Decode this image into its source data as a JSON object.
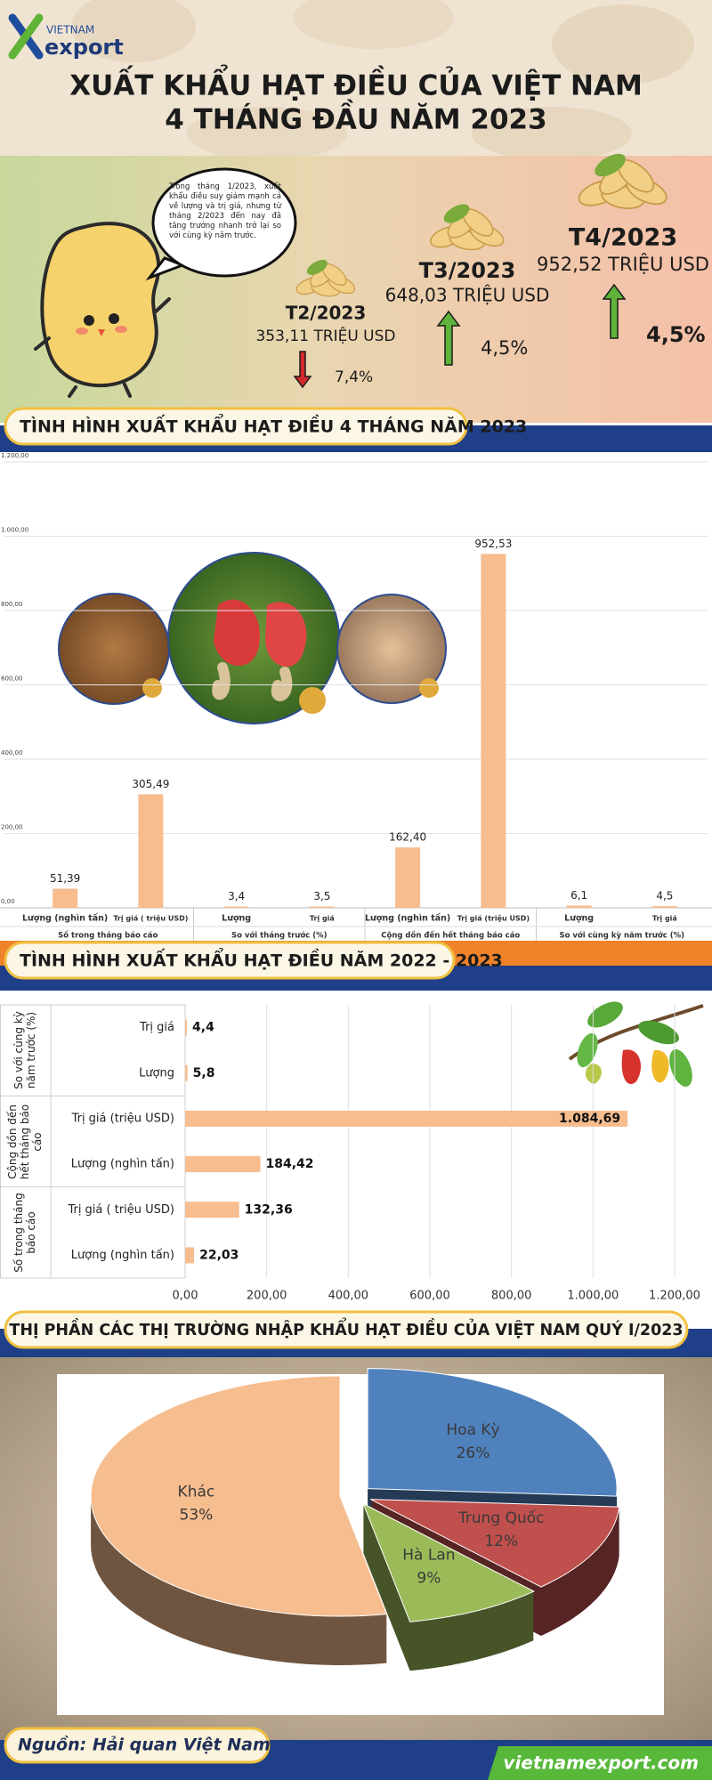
{
  "header": {
    "logo_top": "VIETNAM",
    "logo_bottom": "export",
    "title_lines": [
      "XUẤT KHẨU HẠT ĐIỀU CỦA VIỆT NAM",
      "4 THÁNG ĐẦU NĂM 2023"
    ]
  },
  "hero": {
    "bubble": "Trong tháng 1/2023, xuất khẩu điều suy giảm mạnh cả về lượng và trị giá, nhưng từ tháng 2/2023 đến nay đã tăng trưởng nhanh trở lại so với cùng kỳ năm trước.",
    "months": [
      {
        "period": "T2/2023",
        "value": "353,11 TRIỆU USD",
        "change": "7,4%",
        "direction": "down"
      },
      {
        "period": "T3/2023",
        "value": "648,03 TRIỆU USD",
        "change": "4,5%",
        "direction": "up"
      },
      {
        "period": "T4/2023",
        "value": "952,52 TRIỆU USD",
        "change": "4,5%",
        "direction": "up"
      }
    ]
  },
  "chart_data": [
    {
      "type": "bar",
      "title": "TÌNH HÌNH XUẤT KHẨU HẠT ĐIỀU 4 THÁNG NĂM 2023",
      "categories": [
        "Lượng (nghìn tấn)",
        "Trị giá ( triệu USD)",
        "Lượng",
        "Trị giá",
        "Lượng (nghìn tấn)",
        "Trị giá (triệu USD)",
        "Lượng",
        "Trị giá"
      ],
      "groups": [
        "Số trong tháng báo cáo",
        "So với tháng trước (%)",
        "Cộng dồn đến hết tháng báo cáo",
        "So với cùng kỳ năm trước (%)"
      ],
      "values": [
        51.39,
        305.49,
        3.4,
        3.5,
        162.4,
        952.53,
        6.1,
        4.5
      ],
      "value_labels": [
        "51,39",
        "305,49",
        "3,4",
        "3,5",
        "162,40",
        "952,53",
        "6,1",
        "4,5"
      ],
      "color": "#f7bd8f",
      "ylim": [
        0,
        1200
      ],
      "yticks": [
        {
          "value": 0,
          "label": "0,00"
        },
        {
          "value": 200,
          "label": "200,00"
        },
        {
          "value": 400,
          "label": "400,00"
        },
        {
          "value": 600,
          "label": "600,00"
        },
        {
          "value": 800,
          "label": "800,00"
        },
        {
          "value": 1000,
          "label": "1.000,00"
        },
        {
          "value": 1200,
          "label": "1.200,00"
        }
      ],
      "grid": true
    },
    {
      "type": "barh",
      "title": "TÌNH HÌNH XUẤT KHẨU HẠT ĐIỀU NĂM 2022 - 2023",
      "categories": [
        "Trị giá",
        "Lượng",
        "Trị giá (triệu USD)",
        "Lượng (nghìn tấn)",
        "Trị giá ( triệu USD)",
        "Lượng (nghìn tấn)"
      ],
      "groups": [
        "So với cùng kỳ năm trước (%)",
        "Cộng dồn đến hết tháng báo cáo",
        "Số trong tháng báo cáo"
      ],
      "values": [
        4.4,
        5.8,
        1084.69,
        184.42,
        132.36,
        22.03
      ],
      "value_labels": [
        "4,4",
        "5,8",
        "1.084,69",
        "184,42",
        "132,36",
        "22,03"
      ],
      "color": "#f7bd8f",
      "xlim": [
        0,
        1200
      ],
      "xticks": [
        {
          "value": 0,
          "label": "0,00"
        },
        {
          "value": 200,
          "label": "200,00"
        },
        {
          "value": 400,
          "label": "400,00"
        },
        {
          "value": 600,
          "label": "600,00"
        },
        {
          "value": 800,
          "label": "800,00"
        },
        {
          "value": 1000,
          "label": "1.000,00"
        },
        {
          "value": 1200,
          "label": "1.200,00"
        }
      ],
      "grid": true
    },
    {
      "type": "pie",
      "title": "THỊ PHẦN CÁC THỊ TRƯỜNG NHẬP KHẨU HẠT ĐIỀU CỦA VIỆT NAM QUÝ I/2023",
      "categories": [
        "Hoa Kỳ",
        "Trung Quốc",
        "Hà Lan",
        "Khác"
      ],
      "values": [
        26,
        12,
        9,
        53
      ],
      "value_labels": [
        "26%",
        "12%",
        "9%",
        "53%"
      ],
      "colors": [
        "#4f81bd",
        "#c0504d",
        "#9bbb59",
        "#f6bd8f"
      ]
    }
  ],
  "footer": {
    "source": "Nguồn: Hải quan Việt Nam",
    "website": "vietnamexport.com"
  }
}
